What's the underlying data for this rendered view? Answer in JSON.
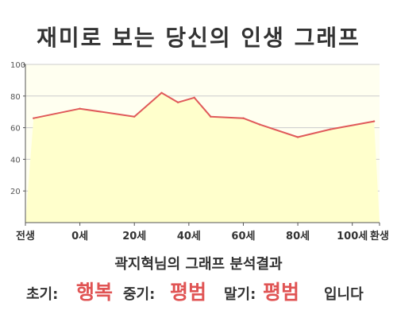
{
  "title": "재미로 보는 당신의 인생 그래프",
  "chart_data": {
    "type": "area",
    "categories": [
      "전생",
      "0세",
      "20세",
      "40세",
      "60세",
      "80세",
      "100세",
      "환생"
    ],
    "x": [
      -17,
      0,
      20,
      30,
      36,
      42,
      48,
      60,
      66,
      80,
      92,
      108
    ],
    "series": [
      {
        "values": [
          66,
          72,
          67,
          82,
          76,
          79,
          67,
          66,
          62,
          54,
          59,
          64
        ]
      }
    ],
    "yticks": [
      20,
      40,
      60,
      80,
      100
    ],
    "ylim": [
      0,
      100
    ],
    "colors": {
      "fill": "#ffffcc",
      "line": "#e05a5a",
      "background": "#fffff0",
      "grid": "#cccccc"
    }
  },
  "caption": "곽지혁님의 그래프 분석결과",
  "result": {
    "early_label": "초기:",
    "early_value": "행복",
    "mid_label": "중기:",
    "mid_value": "평범",
    "late_label": "말기:",
    "late_value": "평범",
    "ending": "입니다"
  }
}
